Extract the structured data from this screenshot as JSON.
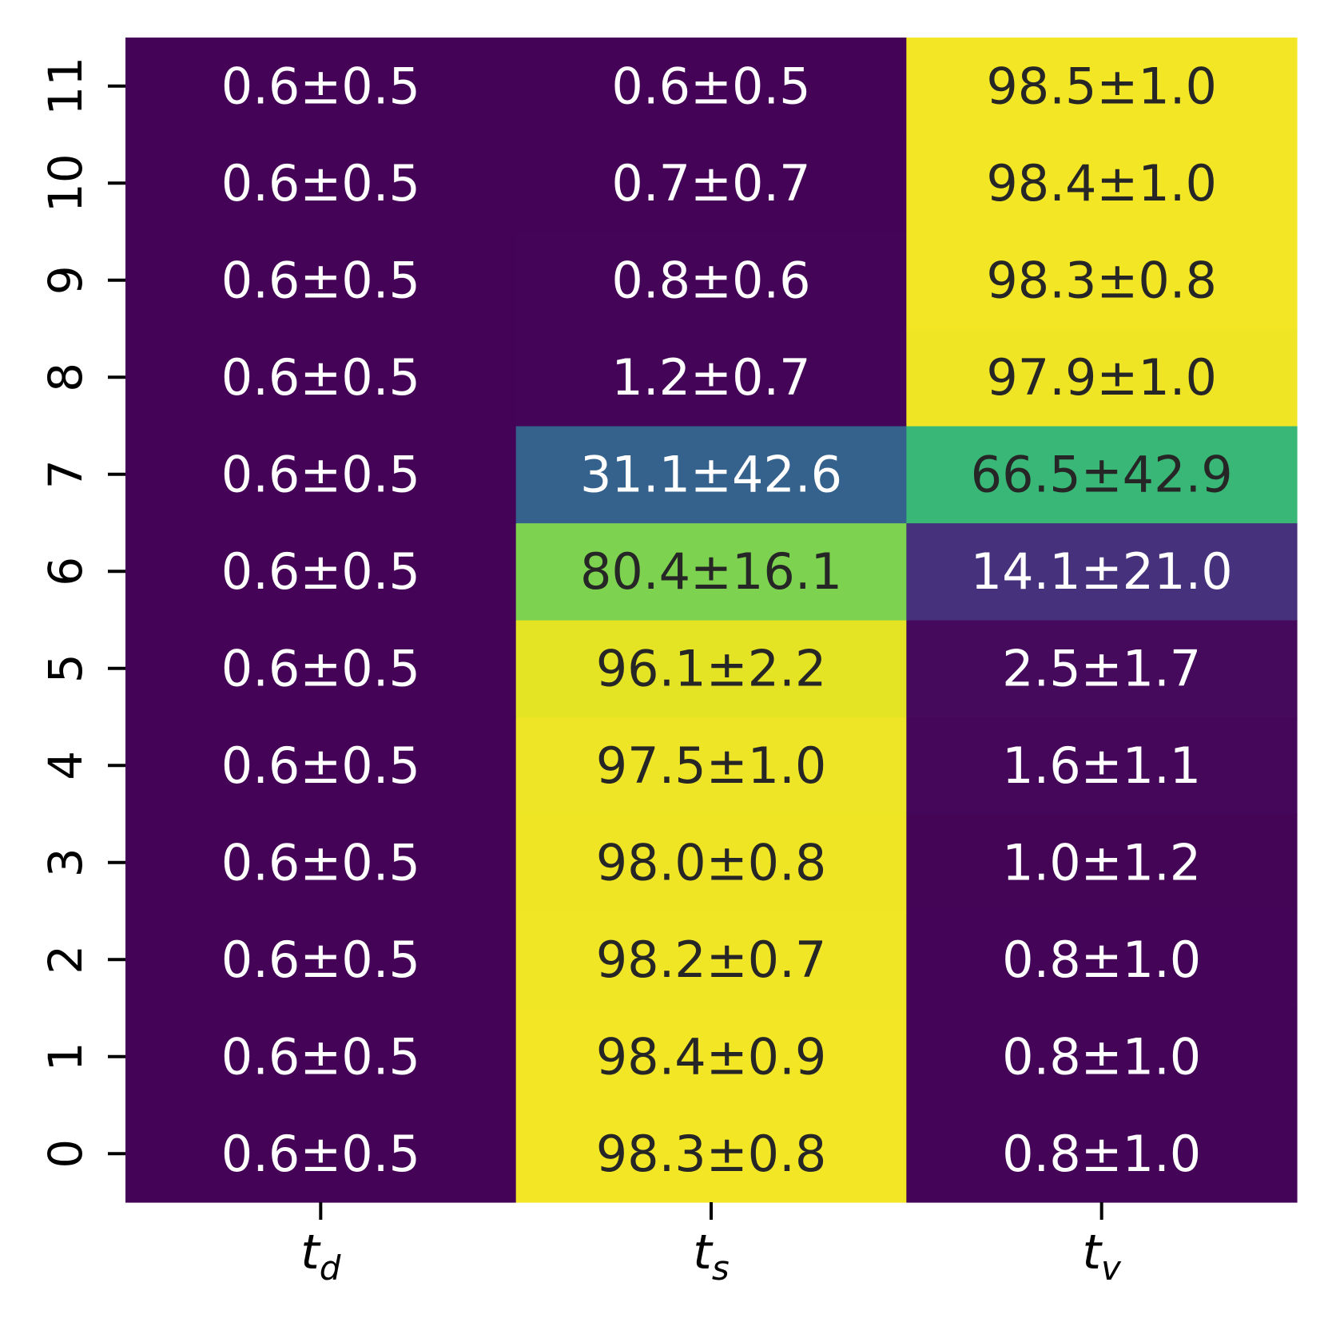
{
  "chart_data": {
    "type": "heatmap",
    "colormap": "viridis",
    "vmin": 0,
    "vmax": 100,
    "colorbar": false,
    "x_categories": [
      {
        "base": "t",
        "sub": "d"
      },
      {
        "base": "t",
        "sub": "s"
      },
      {
        "base": "t",
        "sub": "v"
      }
    ],
    "y_categories": [
      "0",
      "1",
      "2",
      "3",
      "4",
      "5",
      "6",
      "7",
      "8",
      "9",
      "10",
      "11"
    ],
    "values": [
      [
        0.6,
        98.3,
        0.8
      ],
      [
        0.6,
        98.4,
        0.8
      ],
      [
        0.6,
        98.2,
        0.8
      ],
      [
        0.6,
        98.0,
        1.0
      ],
      [
        0.6,
        97.5,
        1.6
      ],
      [
        0.6,
        96.1,
        2.5
      ],
      [
        0.6,
        80.4,
        14.1
      ],
      [
        0.6,
        31.1,
        66.5
      ],
      [
        0.6,
        1.2,
        97.9
      ],
      [
        0.6,
        0.8,
        98.3
      ],
      [
        0.6,
        0.7,
        98.4
      ],
      [
        0.6,
        0.6,
        98.5
      ]
    ],
    "errors": [
      [
        0.5,
        0.8,
        1.0
      ],
      [
        0.5,
        0.9,
        1.0
      ],
      [
        0.5,
        0.7,
        1.0
      ],
      [
        0.5,
        0.8,
        1.2
      ],
      [
        0.5,
        1.0,
        1.1
      ],
      [
        0.5,
        2.2,
        1.7
      ],
      [
        0.5,
        16.1,
        21.0
      ],
      [
        0.5,
        42.6,
        42.9
      ],
      [
        0.5,
        0.7,
        1.0
      ],
      [
        0.5,
        0.6,
        0.8
      ],
      [
        0.5,
        0.7,
        1.0
      ],
      [
        0.5,
        0.5,
        1.0
      ]
    ],
    "annotations": [
      [
        "0.6±0.5",
        "98.3±0.8",
        "0.8±1.0"
      ],
      [
        "0.6±0.5",
        "98.4±0.9",
        "0.8±1.0"
      ],
      [
        "0.6±0.5",
        "98.2±0.7",
        "0.8±1.0"
      ],
      [
        "0.6±0.5",
        "98.0±0.8",
        "1.0±1.2"
      ],
      [
        "0.6±0.5",
        "97.5±1.0",
        "1.6±1.1"
      ],
      [
        "0.6±0.5",
        "96.1±2.2",
        "2.5±1.7"
      ],
      [
        "0.6±0.5",
        "80.4±16.1",
        "14.1±21.0"
      ],
      [
        "0.6±0.5",
        "31.1±42.6",
        "66.5±42.9"
      ],
      [
        "0.6±0.5",
        "1.2±0.7",
        "97.9±1.0"
      ],
      [
        "0.6±0.5",
        "0.8±0.6",
        "98.3±0.8"
      ],
      [
        "0.6±0.5",
        "0.7±0.7",
        "98.4±1.0"
      ],
      [
        "0.6±0.5",
        "0.6±0.5",
        "98.5±1.0"
      ]
    ],
    "text_colors": {
      "dark_cell": "#ffffff",
      "light_cell": "#262626"
    },
    "axis_color": "#000000",
    "background": "#ffffff"
  }
}
